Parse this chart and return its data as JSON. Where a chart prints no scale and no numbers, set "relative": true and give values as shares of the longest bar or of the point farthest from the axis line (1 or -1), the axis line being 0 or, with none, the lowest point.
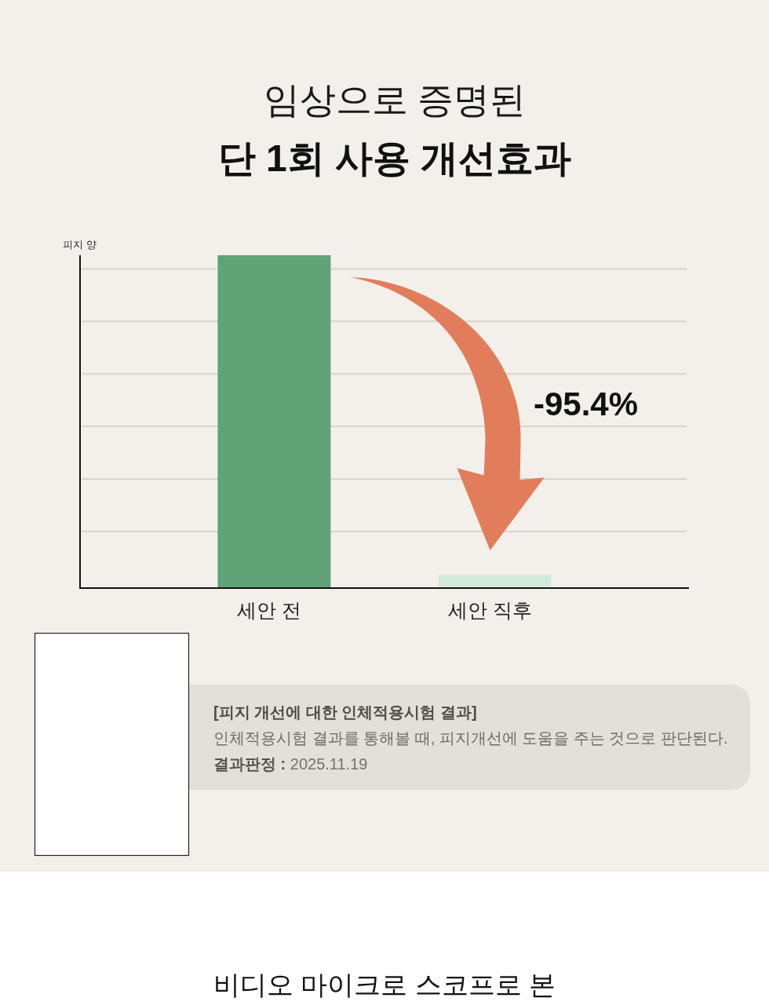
{
  "chart_data": {
    "type": "bar",
    "title": "임상으로 증명된",
    "subtitle": "단 1회 사용 개선효과",
    "ylabel": "피지 양",
    "categories": [
      "세안 전",
      "세안 직후"
    ],
    "values": [
      1,
      0.04
    ],
    "colors": [
      "#5fa377",
      "#d3eadb"
    ],
    "relative": true,
    "grid": "y",
    "annotations": [
      "-95.4%",
      "[피지 개선에 대한 인체적용시험 결과]",
      "인체적용시험 결과를 통해볼 때, 피지개선에 도움을 주는 것으로 판단된다.",
      "결과판정 : 2025.11.19",
      "비디오 마이크로 스코프로 본"
    ]
  }
}
